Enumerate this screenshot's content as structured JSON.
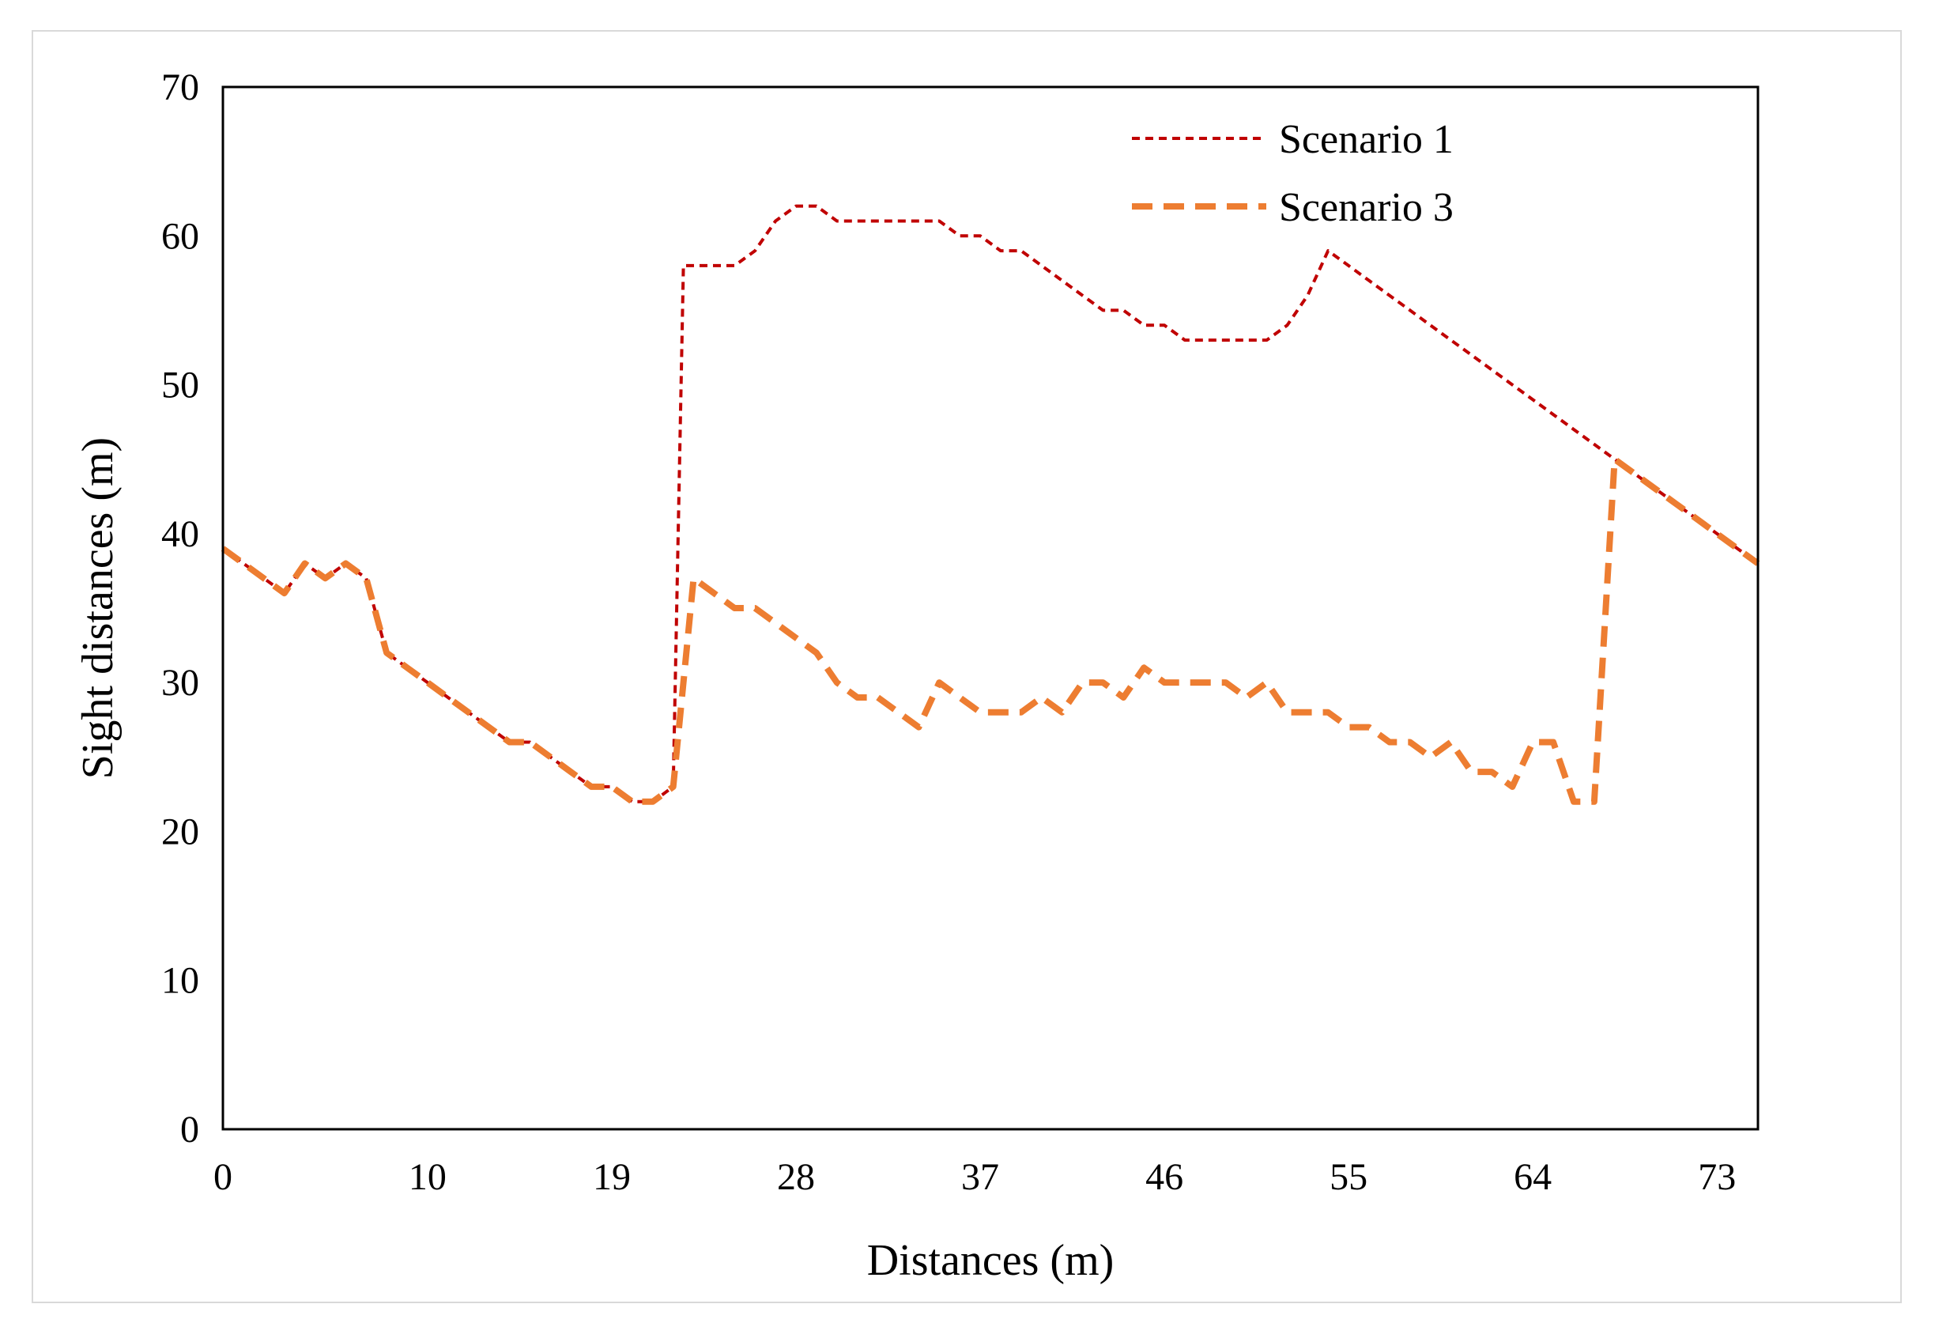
{
  "chart_data": {
    "type": "line",
    "title": "",
    "xlabel": "Distances (m)",
    "ylabel": "Sight distances (m)",
    "xlim": [
      0,
      75
    ],
    "ylim": [
      0,
      70
    ],
    "xticks": [
      0,
      10,
      19,
      28,
      37,
      46,
      55,
      64,
      73
    ],
    "yticks": [
      0,
      10,
      20,
      30,
      40,
      50,
      60,
      70
    ],
    "grid": false,
    "legend_position": "top-right",
    "series": [
      {
        "name": "Scenario 1",
        "color": "#c00000",
        "style": "short-dash",
        "x": [
          0,
          1,
          2,
          3,
          4,
          5,
          6,
          7,
          8,
          9,
          10,
          11,
          12,
          13,
          14,
          15,
          16,
          17,
          18,
          19,
          20,
          21,
          22,
          22.5,
          23,
          24,
          25,
          26,
          27,
          28,
          29,
          30,
          31,
          32,
          33,
          34,
          35,
          36,
          37,
          38,
          39,
          40,
          41,
          42,
          43,
          44,
          45,
          46,
          47,
          48,
          49,
          50,
          51,
          52,
          53,
          54,
          55,
          56,
          57,
          58,
          59,
          60,
          61,
          62,
          63,
          64,
          65,
          66,
          67,
          68,
          69,
          70,
          71,
          72,
          73,
          74,
          75
        ],
        "y": [
          39,
          38,
          37,
          36,
          38,
          37,
          38,
          37,
          32,
          31,
          30,
          29,
          28,
          27,
          26,
          26,
          25,
          24,
          23,
          23,
          22,
          22,
          23,
          58,
          58,
          58,
          58,
          59,
          61,
          62,
          62,
          61,
          61,
          61,
          61,
          61,
          61,
          60,
          60,
          59,
          59,
          58,
          57,
          56,
          55,
          55,
          54,
          54,
          53,
          53,
          53,
          53,
          53,
          54,
          56,
          59,
          58,
          57,
          56,
          55,
          54,
          53,
          52,
          51,
          50,
          49,
          48,
          47,
          46,
          45,
          44,
          43,
          42,
          41,
          40,
          39,
          38
        ]
      },
      {
        "name": "Scenario 3",
        "color": "#ed7d31",
        "style": "long-dash",
        "x": [
          0,
          1,
          2,
          3,
          4,
          5,
          6,
          7,
          8,
          9,
          10,
          11,
          12,
          13,
          14,
          15,
          16,
          17,
          18,
          19,
          20,
          21,
          22,
          23,
          24,
          25,
          26,
          27,
          28,
          29,
          30,
          31,
          32,
          33,
          34,
          35,
          36,
          37,
          38,
          39,
          40,
          41,
          42,
          43,
          44,
          45,
          46,
          47,
          48,
          49,
          50,
          51,
          52,
          53,
          54,
          55,
          56,
          57,
          58,
          59,
          60,
          61,
          62,
          63,
          64,
          65,
          66,
          67,
          68,
          69,
          70,
          71,
          72,
          73,
          74,
          75
        ],
        "y": [
          39,
          38,
          37,
          36,
          38,
          37,
          38,
          37,
          32,
          31,
          30,
          29,
          28,
          27,
          26,
          26,
          25,
          24,
          23,
          23,
          22,
          22,
          23,
          37,
          36,
          35,
          35,
          34,
          33,
          32,
          30,
          29,
          29,
          28,
          27,
          30,
          29,
          28,
          28,
          28,
          29,
          28,
          30,
          30,
          29,
          31,
          30,
          30,
          30,
          30,
          29,
          30,
          28,
          28,
          28,
          27,
          27,
          26,
          26,
          25,
          26,
          24,
          24,
          23,
          26,
          26,
          22,
          22,
          45,
          44,
          43,
          42,
          41,
          40,
          39,
          38
        ]
      }
    ]
  }
}
